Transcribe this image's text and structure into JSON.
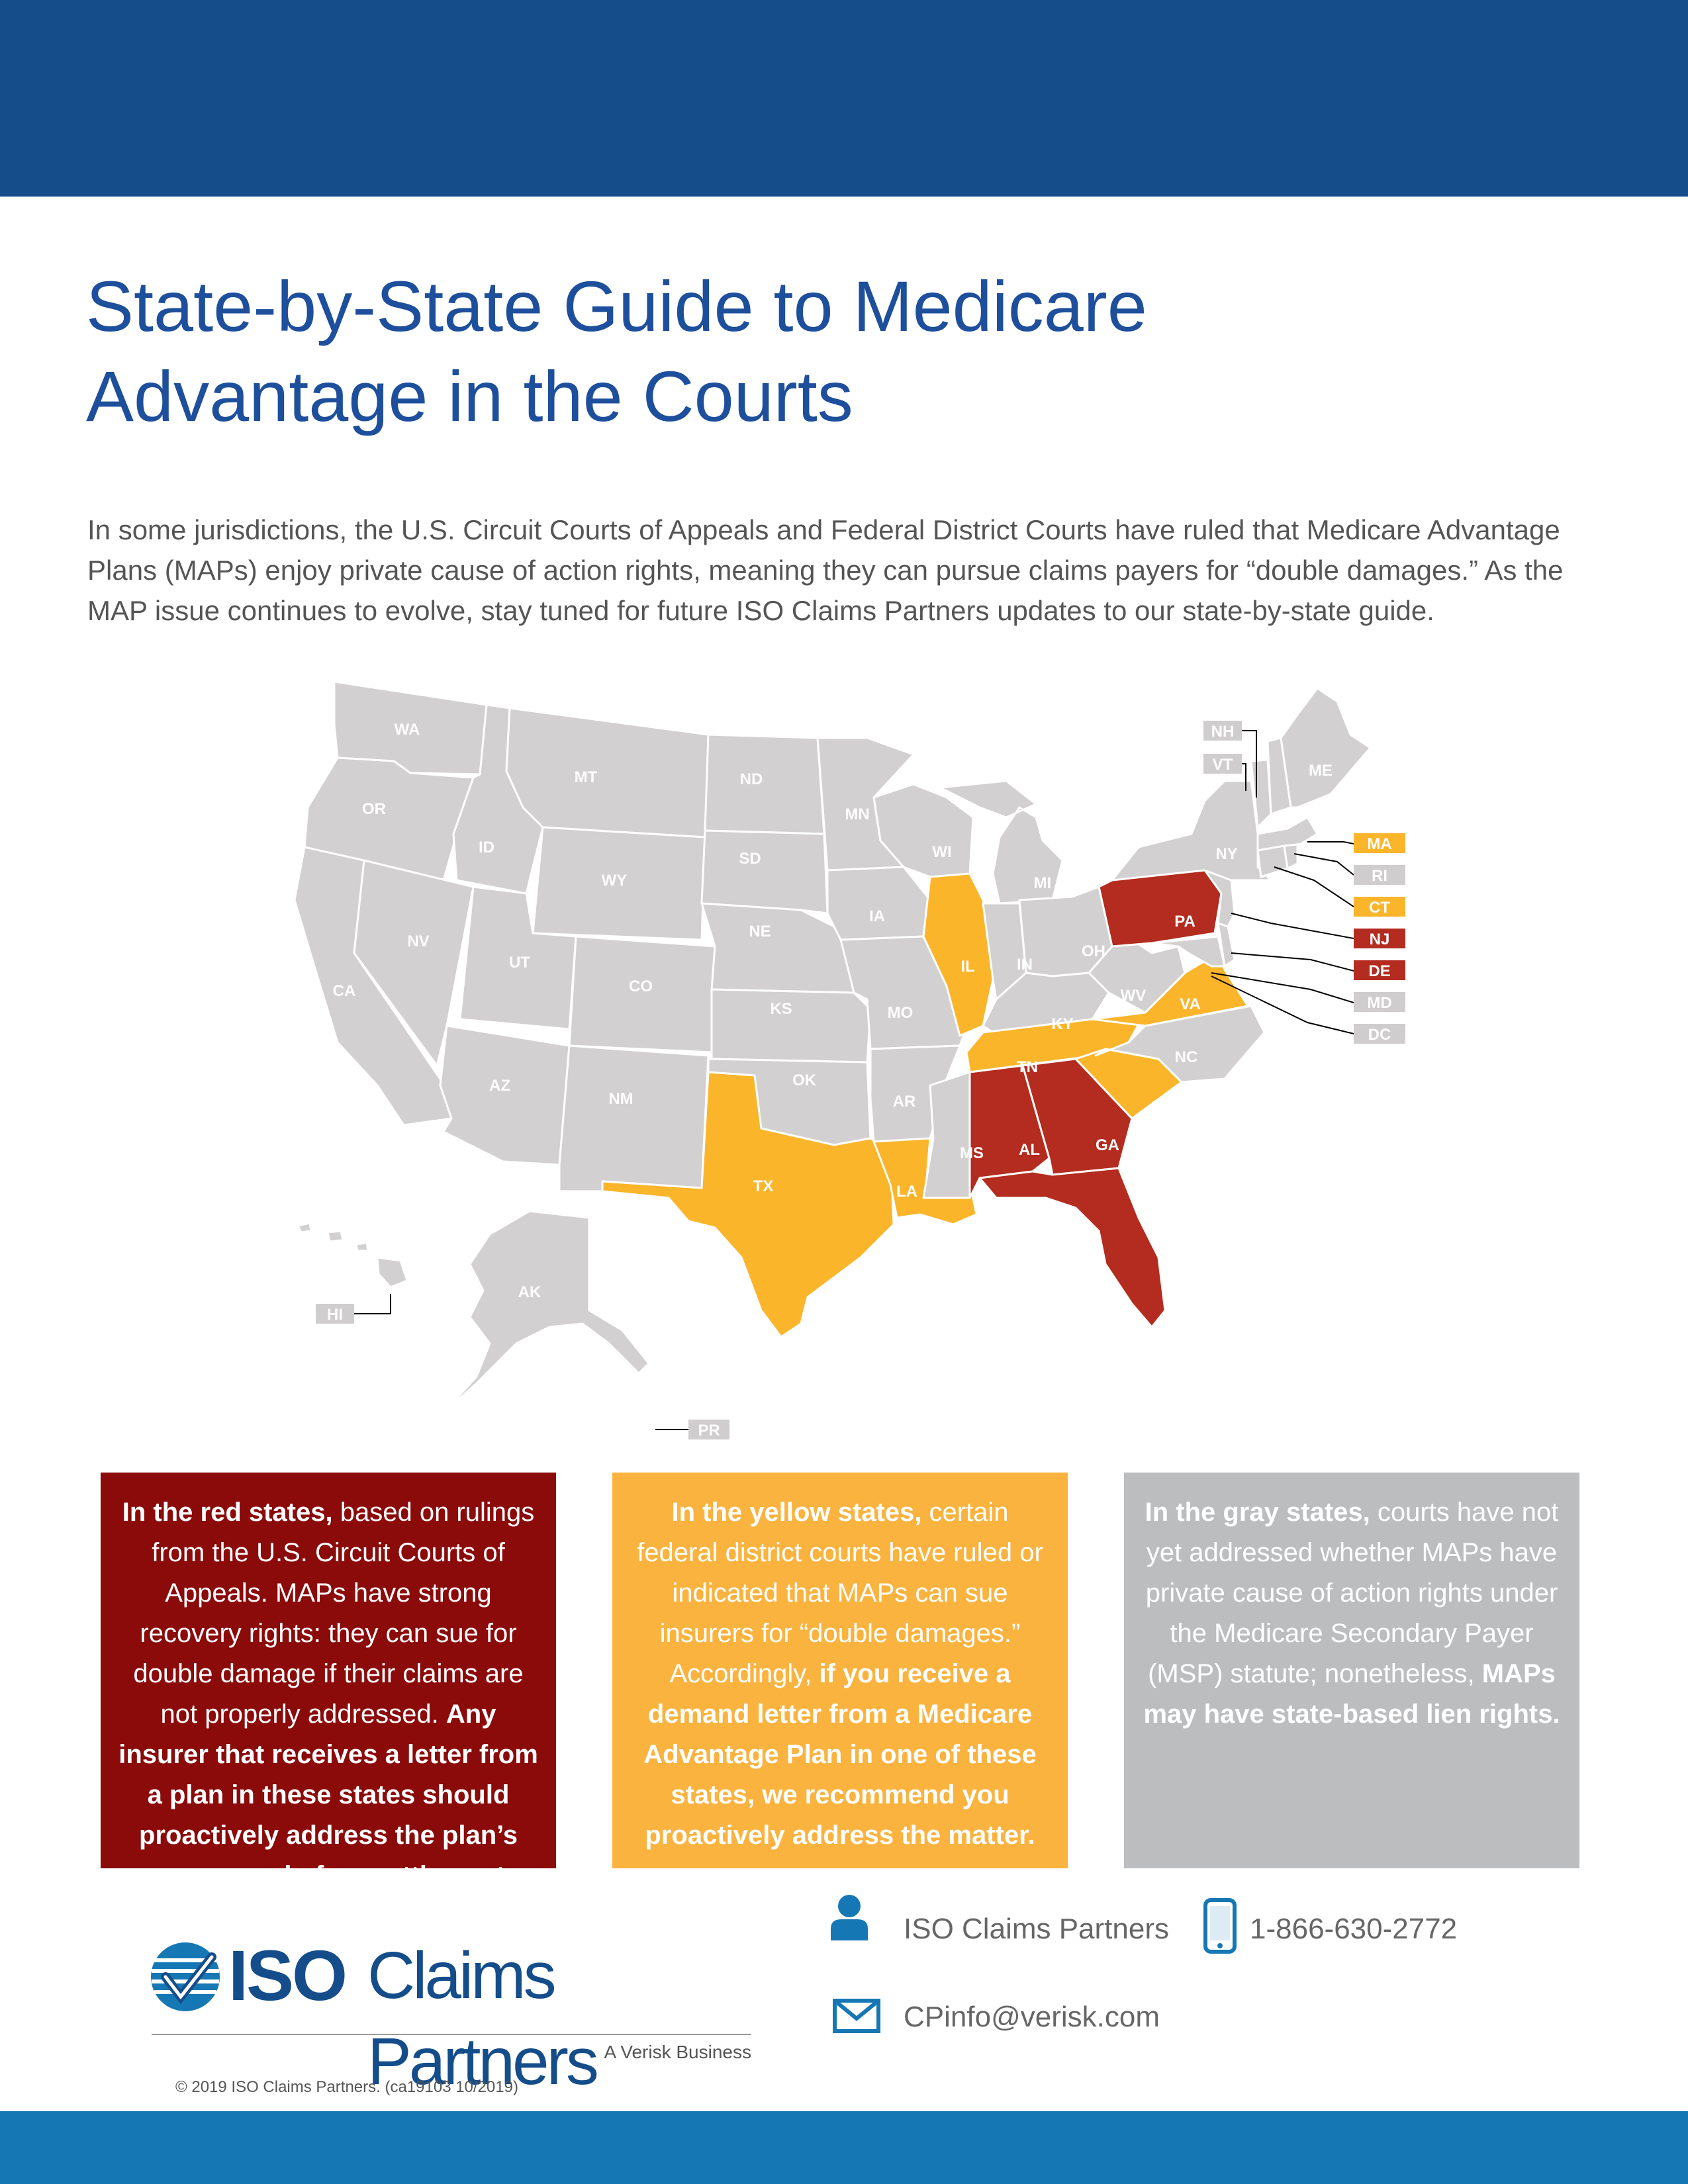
{
  "header": {
    "title_line1": "State-by-State Guide to Medicare",
    "title_line2": "Advantage in the Courts"
  },
  "intro": "In some jurisdictions, the U.S. Circuit Courts of Appeals and Federal District Courts have ruled that Medicare Advantage Plans (MAPs) enjoy private cause of action rights, meaning they can pursue claims payers for “double damages.” As the MAP issue continues to evolve, stay tuned for future ISO Claims Partners updates to our state-by-state guide.",
  "colors": {
    "red": "#b32c1f",
    "yellow": "#fbb52b",
    "gray": "#d2d0d1",
    "header": "#154d8a",
    "title": "#1e4f9c"
  },
  "map": {
    "states": {
      "WA": "gray",
      "OR": "gray",
      "CA": "gray",
      "NV": "gray",
      "ID": "gray",
      "MT": "gray",
      "WY": "gray",
      "UT": "gray",
      "AZ": "gray",
      "CO": "gray",
      "NM": "gray",
      "ND": "gray",
      "SD": "gray",
      "NE": "gray",
      "KS": "gray",
      "OK": "gray",
      "TX": "yellow",
      "MN": "gray",
      "IA": "gray",
      "MO": "gray",
      "AR": "gray",
      "LA": "yellow",
      "WI": "gray",
      "IL": "yellow",
      "MI": "gray",
      "IN": "gray",
      "OH": "gray",
      "KY": "gray",
      "TN": "yellow",
      "MS": "gray",
      "AL": "red",
      "GA": "red",
      "FL": "red",
      "SC": "yellow",
      "NC": "gray",
      "VA": "yellow",
      "WV": "gray",
      "PA": "red",
      "NY": "gray",
      "ME": "gray",
      "AK": "gray",
      "HI": "gray"
    },
    "callouts": {
      "NH": "gray",
      "VT": "gray",
      "MA": "yellow",
      "RI": "gray",
      "CT": "yellow",
      "NJ": "red",
      "DE": "red",
      "MD": "gray",
      "DC": "gray",
      "HI": "gray",
      "PR": "gray"
    }
  },
  "boxes": {
    "red": {
      "lead": "In the red states,",
      "text": " based on rulings from the U.S. Circuit Courts of Appeals. MAPs have strong recovery rights: they can sue for double damage if their claims are not properly addressed. ",
      "bold": "Any insurer that receives a letter from a plan in these states should proactively address the plan’s concerns– before settlement."
    },
    "yellow": {
      "lead": "In the yellow states,",
      "text": " certain federal district courts have ruled or indicated that MAPs can sue insurers for “double damages.” Accordingly, ",
      "bold": "if you receive a demand letter from a Medicare Advantage Plan in one of these states, we recommend you proactively address the matter."
    },
    "gray": {
      "lead": "In the gray states,",
      "text": " courts have not yet addressed whether MAPs have private cause of action rights under  the Medicare Secondary Payer (MSP) statute; nonetheless, ",
      "bold": "MAPs may have state-based lien rights."
    }
  },
  "footer": {
    "logo_iso": "ISO",
    "logo_name": "Claims Partners",
    "logo_tag": "A Verisk Business",
    "copyright": "© 2019 ISO Claims Partners. (ca19103 10/2019)",
    "contact_name": "ISO Claims Partners",
    "phone": "1-866-630-2772",
    "email": "CPinfo@verisk.com",
    "icons": [
      "person-icon",
      "phone-icon",
      "mail-icon"
    ]
  }
}
